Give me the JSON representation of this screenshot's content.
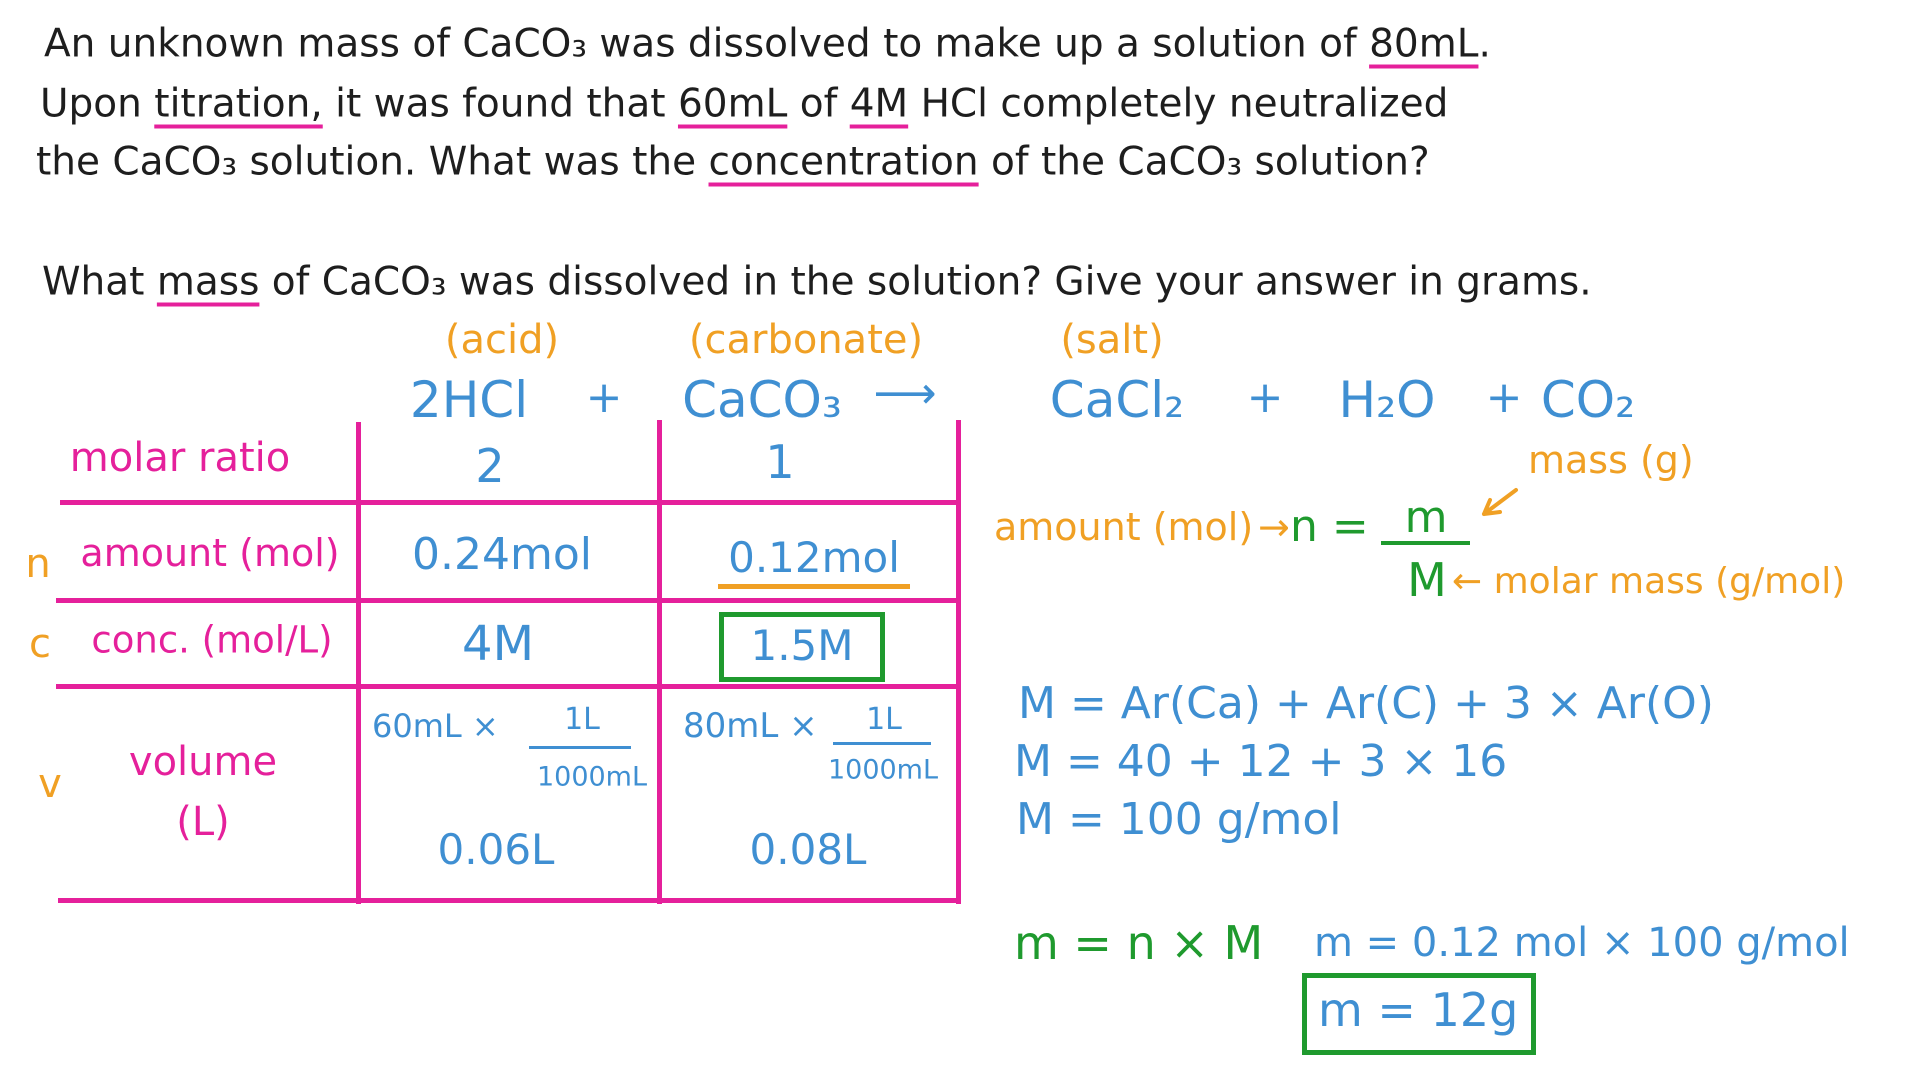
{
  "problem": {
    "lines": [
      [
        "An unknown mass of CaCO₃ was dissolved to make up a solution of ",
        "80mL",
        "."
      ],
      [
        "Upon ",
        "titration,",
        " it was found that ",
        "60mL",
        " of ",
        "4M",
        " HCl completely neutralized"
      ],
      [
        "the CaCO₃ solution. What was the ",
        "concentration",
        " of the CaCO₃ solution?"
      ]
    ]
  },
  "question": [
    "What ",
    "mass",
    " of CaCO₃ was dissolved in the solution? Give your answer in grams."
  ],
  "equation": {
    "labels": [
      "(acid)",
      "(carbonate)",
      "(salt)"
    ],
    "terms": [
      "2HCl",
      "+",
      "CaCO₃",
      "⟶",
      "CaCl₂",
      "+",
      "H₂O",
      "+",
      "CO₂"
    ]
  },
  "table": {
    "rows": [
      {
        "label": "molar ratio",
        "cells": [
          "2",
          "1"
        ]
      },
      {
        "symbol": "n",
        "label": "amount (mol)",
        "cells": [
          "0.24mol",
          "0.12mol"
        ]
      },
      {
        "symbol": "c",
        "label": "conc. (mol/L)",
        "cells": [
          "4M",
          "1.5M"
        ]
      },
      {
        "symbol": "v",
        "label": [
          "volume",
          "(L)"
        ],
        "cells": [
          {
            "volume": "60mL ×",
            "numerator": "1L",
            "denominator": "1000mL",
            "result": "0.06L"
          },
          {
            "volume": "80mL ×",
            "numerator": "1L",
            "denominator": "1000mL",
            "result": "0.08L"
          }
        ]
      }
    ]
  },
  "formula": {
    "amount": "amount (mol)",
    "arrow": "→",
    "lhs": "n =",
    "numerator": "m",
    "denominator": "M",
    "mass_note": "mass (g)",
    "molar_mass_note": "← molar mass (g/mol)"
  },
  "molar_mass": [
    "M = Ar(Ca) + Ar(C) + 3 × Ar(O)",
    "M = 40 + 12 + 3 × 16",
    "M = 100 g/mol"
  ],
  "mass_calc": {
    "formula": "m = n × M",
    "substitution": "m = 0.12 mol × 100 g/mol",
    "answer": "m = 12g"
  }
}
